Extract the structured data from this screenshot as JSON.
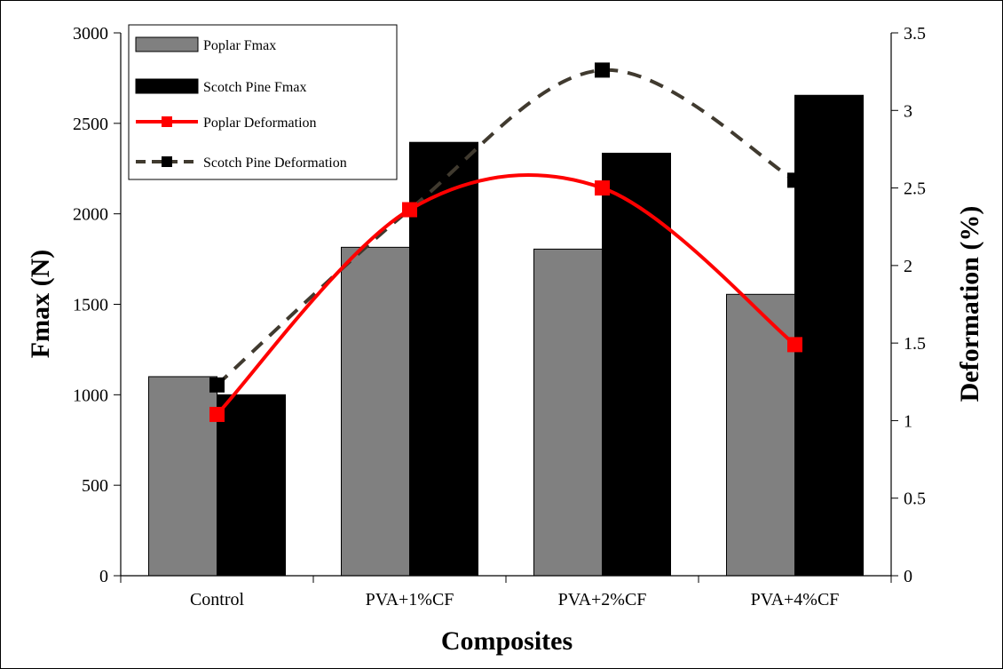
{
  "chart_data": {
    "type": "bar",
    "categories": [
      "Control",
      "PVA+1%CF",
      "PVA+2%CF",
      "PVA+4%CF"
    ],
    "xlabel": "Composites",
    "ylabel": "Fmax (N)",
    "y2label": "Deformation (%)",
    "ylim": [
      0,
      3000
    ],
    "y2lim": [
      0,
      3.5
    ],
    "yticks": [
      "0",
      "500",
      "1000",
      "1500",
      "2000",
      "2500",
      "3000"
    ],
    "y2ticks": [
      "0",
      "0.5",
      "1",
      "1.5",
      "2",
      "2.5",
      "3",
      "3.5"
    ],
    "series": [
      {
        "name": "Poplar Fmax",
        "type": "bar",
        "axis": "left",
        "color": "#808080",
        "values": [
          1100,
          1815,
          1805,
          1555
        ]
      },
      {
        "name": "Scotch Pine Fmax",
        "type": "bar",
        "axis": "left",
        "color": "#000000",
        "values": [
          1000,
          2395,
          2335,
          2655
        ]
      },
      {
        "name": "Poplar Deformation",
        "type": "line",
        "axis": "right",
        "color": "#ff0000",
        "style": "solid",
        "smooth": true,
        "values": [
          1.04,
          2.36,
          2.5,
          1.49
        ]
      },
      {
        "name": "Scotch Pine Deformation",
        "type": "line",
        "axis": "right",
        "color": "#403a2f",
        "style": "dashed",
        "smooth": true,
        "values": [
          1.23,
          2.36,
          3.26,
          2.55
        ]
      }
    ],
    "legend": "top-left",
    "grid": false
  }
}
